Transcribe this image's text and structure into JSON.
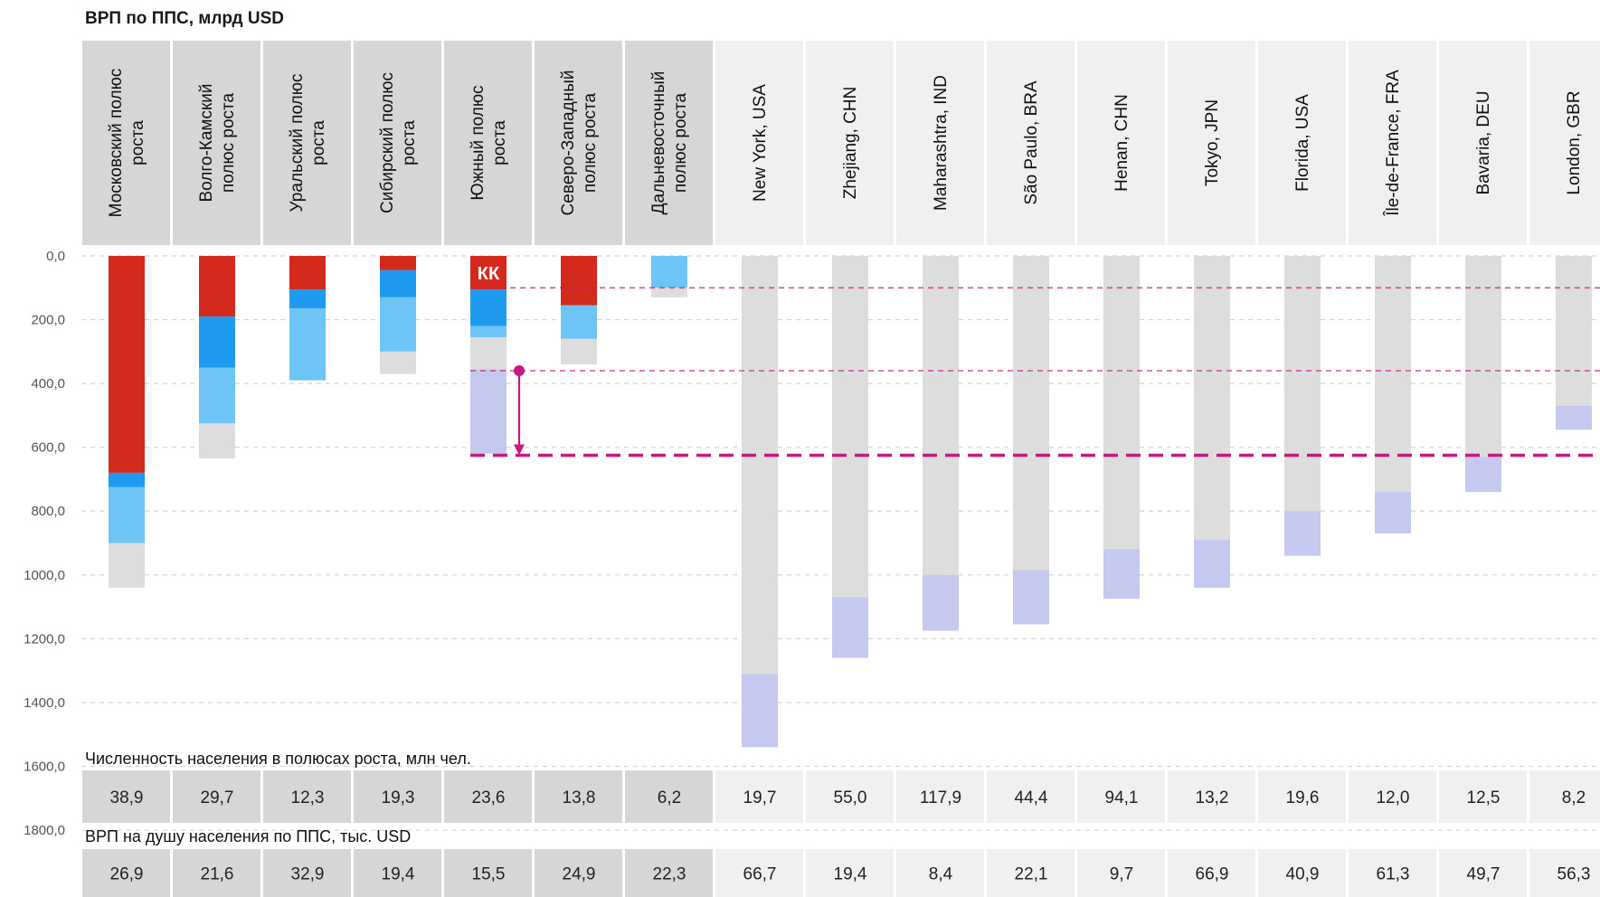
{
  "title": "ВРП по ППС, млрд USD",
  "colors": {
    "red": "#d42a1e",
    "blue": "#1e9bef",
    "lightblue": "#6ec3f7",
    "gray": "#dddddd",
    "lavender": "#c5c8ef",
    "magenta": "#c8187f",
    "header_ru": "#d6d6d6",
    "header_world": "#f0f0f0"
  },
  "chart_data": {
    "type": "bar",
    "orientation": "downward stacked",
    "title": "ВРП по ППС, млрд USD",
    "ylim": [
      0,
      1800
    ],
    "y_ticks": [
      0,
      200,
      400,
      600,
      800,
      1000,
      1200,
      1400,
      1600,
      1800
    ],
    "y_tick_labels": [
      "0,0",
      "200,0",
      "400,0",
      "600,0",
      "800,0",
      "1000,0",
      "1200,0",
      "1400,0",
      "1600,0",
      "1800,0"
    ],
    "grid": true,
    "categories": [
      "Московский полюс роста",
      "Волго-Камский полюс роста",
      "Уральский полюс роста",
      "Сибирский полюс роста",
      "Южный полюс роста",
      "Северо-Западный полюс роста",
      "Дальневосточный полюс роста",
      "New York, USA",
      "Zhejiang, CHN",
      "Maharashtra, IND",
      "São Paulo, BRA",
      "Henan, CHN",
      "Tokyo, JPN",
      "Florida, USA",
      "Île-de-France, FRA",
      "Bavaria, DEU",
      "London, GBR"
    ],
    "category_labels": [
      [
        "Московский полюс",
        "роста"
      ],
      [
        "Волго-Камский",
        "полюс роста"
      ],
      [
        "Уральский полюс",
        "роста"
      ],
      [
        "Сибирский полюс",
        "роста"
      ],
      [
        "Южный полюс",
        "роста"
      ],
      [
        "Северо-Западный",
        "полюс роста"
      ],
      [
        "Дальневосточный",
        "полюс роста"
      ],
      [
        "New York, USA"
      ],
      [
        "Zhejiang, CHN"
      ],
      [
        "Maharashtra, IND"
      ],
      [
        "São Paulo, BRA"
      ],
      [
        "Henan, CHN"
      ],
      [
        "Tokyo, JPN"
      ],
      [
        "Florida, USA"
      ],
      [
        "Île-de-France, FRA"
      ],
      [
        "Bavaria, DEU"
      ],
      [
        "London, GBR"
      ]
    ],
    "group": [
      "ru",
      "ru",
      "ru",
      "ru",
      "ru",
      "ru",
      "ru",
      "world",
      "world",
      "world",
      "world",
      "world",
      "world",
      "world",
      "world",
      "world",
      "world"
    ],
    "stacks": [
      [
        {
          "c": "red",
          "v": 680
        },
        {
          "c": "blue",
          "v": 45
        },
        {
          "c": "lightblue",
          "v": 175
        },
        {
          "c": "gray",
          "v": 140
        }
      ],
      [
        {
          "c": "red",
          "v": 190
        },
        {
          "c": "blue",
          "v": 160
        },
        {
          "c": "lightblue",
          "v": 175
        },
        {
          "c": "gray",
          "v": 110
        }
      ],
      [
        {
          "c": "red",
          "v": 105
        },
        {
          "c": "blue",
          "v": 60
        },
        {
          "c": "lightblue",
          "v": 225
        }
      ],
      [
        {
          "c": "red",
          "v": 45
        },
        {
          "c": "blue",
          "v": 85
        },
        {
          "c": "lightblue",
          "v": 170
        },
        {
          "c": "gray",
          "v": 70
        }
      ],
      [
        {
          "c": "red",
          "v": 105
        },
        {
          "c": "blue",
          "v": 115
        },
        {
          "c": "lightblue",
          "v": 35
        },
        {
          "c": "gray",
          "v": 100
        },
        {
          "c": "lavender",
          "v": 265
        }
      ],
      [
        {
          "c": "red",
          "v": 155
        },
        {
          "c": "lightblue",
          "v": 105
        },
        {
          "c": "gray",
          "v": 80
        }
      ],
      [
        {
          "c": "lightblue",
          "v": 100
        },
        {
          "c": "gray",
          "v": 30
        }
      ],
      [
        {
          "c": "gray",
          "v": 1310
        },
        {
          "c": "lavender",
          "v": 230
        }
      ],
      [
        {
          "c": "gray",
          "v": 1070
        },
        {
          "c": "lavender",
          "v": 190
        }
      ],
      [
        {
          "c": "gray",
          "v": 1000
        },
        {
          "c": "lavender",
          "v": 175
        }
      ],
      [
        {
          "c": "gray",
          "v": 985
        },
        {
          "c": "lavender",
          "v": 170
        }
      ],
      [
        {
          "c": "gray",
          "v": 920
        },
        {
          "c": "lavender",
          "v": 155
        }
      ],
      [
        {
          "c": "gray",
          "v": 890
        },
        {
          "c": "lavender",
          "v": 150
        }
      ],
      [
        {
          "c": "gray",
          "v": 800
        },
        {
          "c": "lavender",
          "v": 140
        }
      ],
      [
        {
          "c": "gray",
          "v": 740
        },
        {
          "c": "lavender",
          "v": 130
        }
      ],
      [
        {
          "c": "gray",
          "v": 630
        },
        {
          "c": "lavender",
          "v": 110
        }
      ],
      [
        {
          "c": "gray",
          "v": 470
        },
        {
          "c": "lavender",
          "v": 75
        }
      ]
    ],
    "reference_lines": [
      {
        "y": 100,
        "style": "dashed-thin"
      },
      {
        "y": 360,
        "style": "dashed-thin"
      },
      {
        "y": 625,
        "style": "dashed-thick"
      }
    ],
    "arrow": {
      "category_index": 4,
      "from": 360,
      "to": 625
    },
    "kk_label": {
      "text": "КК",
      "category_index": 4
    },
    "population_label": "Численность населения в полюсах роста, млн чел.",
    "population": [
      "38,9",
      "29,7",
      "12,3",
      "19,3",
      "23,6",
      "13,8",
      "6,2",
      "19,7",
      "55,0",
      "117,9",
      "44,4",
      "94,1",
      "13,2",
      "19,6",
      "12,0",
      "12,5",
      "8,2"
    ],
    "per_capita_label": "ВРП на душу населения по ППС, тыс. USD",
    "per_capita": [
      "26,9",
      "21,6",
      "32,9",
      "19,4",
      "15,5",
      "24,9",
      "22,3",
      "66,7",
      "19,4",
      "8,4",
      "22,1",
      "9,7",
      "66,9",
      "40,9",
      "61,3",
      "49,7",
      "56,3"
    ]
  }
}
